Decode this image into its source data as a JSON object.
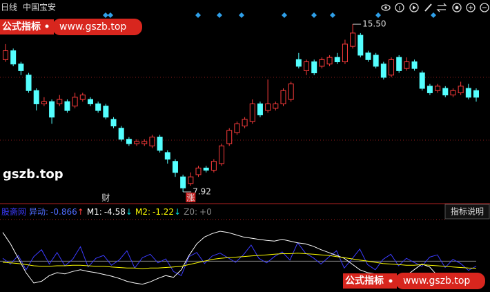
{
  "header": {
    "period": "日线",
    "stock": "中国宝安"
  },
  "watermark": {
    "badge": "公式指标",
    "url": "www.gszb.top",
    "site": "gszb.top"
  },
  "button": "指标说明",
  "chart_data": [
    {
      "type": "candlestick",
      "ylim": [
        7.39,
        15.97
      ],
      "up_color": "#ff3c3c",
      "down_color": "#54ffff",
      "open": [
        13.9,
        14.3,
        13.7,
        13.2,
        12.5,
        11.9,
        12.0,
        11.9,
        12.0,
        11.8,
        12.1,
        12.1,
        11.9,
        11.8,
        11.2,
        10.8,
        10.3,
        10.1,
        10.1,
        10.0,
        10.4,
        9.7,
        9.3,
        8.6,
        8.3,
        8.7,
        9.0,
        8.9,
        9.2,
        10.1,
        10.6,
        10.9,
        11.1,
        11.9,
        11.6,
        11.7,
        11.9,
        12.1,
        13.9,
        13.4,
        13.8,
        13.6,
        13.7,
        14.0,
        13.8,
        14.5,
        15.0,
        14.2,
        14.1,
        13.7,
        13.2,
        14.0,
        13.5,
        13.8,
        13.3,
        12.7,
        12.5,
        12.6,
        12.3,
        12.4,
        12.6,
        12.5
      ],
      "high": [
        14.6,
        14.4,
        13.8,
        13.3,
        12.6,
        12.2,
        12.1,
        12.3,
        12.1,
        12.4,
        12.4,
        12.2,
        12.0,
        11.9,
        11.3,
        10.9,
        10.4,
        10.3,
        10.3,
        10.5,
        10.5,
        9.8,
        9.4,
        8.7,
        8.8,
        9.1,
        9.1,
        9.4,
        10.1,
        10.8,
        11.1,
        11.3,
        12.1,
        12.0,
        13.0,
        12.0,
        12.6,
        12.9,
        14.2,
        13.9,
        13.9,
        14.0,
        14.1,
        14.2,
        14.8,
        15.5,
        15.1,
        14.3,
        14.2,
        13.8,
        14.0,
        14.1,
        14.0,
        13.9,
        13.4,
        12.8,
        12.8,
        12.7,
        12.6,
        12.9,
        12.8,
        12.6
      ],
      "low": [
        13.8,
        13.6,
        13.2,
        12.4,
        11.6,
        11.8,
        11.0,
        11.8,
        11.5,
        11.7,
        12.0,
        11.8,
        11.5,
        11.2,
        10.8,
        10.2,
        10.0,
        10.0,
        10.0,
        9.9,
        9.7,
        9.2,
        8.6,
        7.92,
        8.2,
        8.6,
        8.8,
        8.8,
        9.1,
        10.0,
        10.5,
        10.8,
        11.0,
        11.3,
        11.5,
        11.6,
        11.8,
        12.0,
        13.5,
        13.2,
        13.2,
        13.5,
        13.6,
        13.7,
        13.7,
        14.4,
        14.0,
        13.8,
        13.5,
        13.0,
        13.1,
        13.3,
        13.4,
        13.4,
        12.5,
        12.3,
        12.4,
        12.2,
        12.2,
        12.3,
        12.1,
        12.0
      ],
      "close": [
        14.3,
        13.7,
        13.4,
        12.5,
        11.9,
        12.0,
        11.3,
        12.1,
        11.6,
        12.2,
        12.3,
        11.9,
        11.6,
        11.3,
        10.9,
        10.3,
        10.1,
        10.2,
        10.2,
        10.4,
        9.8,
        9.4,
        8.8,
        8.1,
        8.6,
        9.0,
        8.9,
        9.3,
        10.0,
        10.7,
        11.0,
        11.2,
        11.9,
        11.4,
        11.9,
        11.9,
        12.5,
        12.8,
        13.6,
        13.8,
        13.3,
        13.9,
        14.0,
        13.8,
        14.6,
        15.1,
        14.1,
        13.9,
        13.6,
        13.1,
        13.9,
        13.4,
        13.8,
        13.5,
        12.6,
        12.4,
        12.7,
        12.3,
        12.5,
        12.7,
        12.2,
        12.2
      ],
      "high_label": {
        "value": 15.5,
        "label": "15.50"
      },
      "events": [
        {
          "index": 13,
          "label": "财",
          "boxed": false
        },
        {
          "index": 24,
          "label": "涨",
          "boxed": true
        }
      ]
    },
    {
      "type": "line",
      "indicator": "股斋网",
      "ylim": [
        -5,
        7
      ],
      "series": [
        {
          "name": "异动:",
          "color": "#3b3bff",
          "arrow": "↑",
          "arrow_color": "#ff3b3b",
          "values": [
            0.5,
            -0.5,
            1,
            -1.5,
            0.8,
            2,
            -0.5,
            1.5,
            -0.8,
            0.3,
            2.5,
            -1,
            0.5,
            1,
            -0.7,
            0.2,
            1.8,
            -1.2,
            0.6,
            1.2,
            -0.3,
            0.4,
            -1.8,
            -2.5,
            0.8,
            1.5,
            -0.4,
            0.9,
            1.4,
            0.6,
            -0.2,
            1.1,
            2.8,
            0.5,
            -0.3,
            0.8,
            1.6,
            0.2,
            3.2,
            1.4,
            0.6,
            -0.5,
            0.7,
            1.8,
            -1.2,
            0.4,
            2.1,
            -0.6,
            -1.5,
            0.3,
            1.2,
            -0.8,
            0.5,
            -0.2,
            -0.9,
            0.7,
            1.1,
            -1.1,
            0.3,
            -0.4,
            -1.6,
            -0.866
          ]
        },
        {
          "name": "M1:",
          "color": "#ffffff",
          "arrow": "↓",
          "arrow_color": "#00d8d8",
          "values": [
            5.0,
            3.0,
            0.5,
            -2.0,
            -3.8,
            -3.5,
            -2.5,
            -2.0,
            -2.2,
            -1.8,
            -1.5,
            -1.8,
            -2.0,
            -2.3,
            -2.6,
            -3.0,
            -3.5,
            -3.8,
            -4.0,
            -3.6,
            -3.0,
            -2.5,
            -2.8,
            -1.5,
            1.0,
            3.0,
            4.2,
            4.8,
            5.2,
            5.0,
            4.6,
            4.2,
            4.0,
            3.8,
            3.6,
            3.5,
            3.8,
            3.5,
            3.2,
            3.0,
            2.6,
            2.0,
            1.5,
            1.0,
            0.5,
            -0.5,
            -1.5,
            -2.0,
            -2.2,
            -2.5,
            -2.4,
            -2.6,
            -2.5,
            -1.5,
            -0.5,
            -1.0,
            -2.5,
            -3.5,
            -4.0,
            -4.3,
            -4.4,
            -4.58
          ]
        },
        {
          "name": "M2:",
          "color": "#ffff00",
          "arrow": "↓",
          "arrow_color": "#00d8d8",
          "values": [
            -0.2,
            -0.3,
            -0.4,
            -0.6,
            -0.8,
            -0.9,
            -0.9,
            -0.8,
            -0.8,
            -0.7,
            -0.7,
            -0.8,
            -0.9,
            -0.9,
            -1.0,
            -1.1,
            -1.2,
            -1.2,
            -1.3,
            -1.2,
            -1.2,
            -1.1,
            -1.0,
            -0.9,
            -0.6,
            -0.3,
            0.0,
            0.3,
            0.5,
            0.6,
            0.7,
            0.8,
            0.9,
            1.0,
            1.1,
            1.2,
            1.3,
            1.3,
            1.4,
            1.3,
            1.2,
            1.1,
            1.0,
            0.8,
            0.6,
            0.4,
            0.2,
            0.0,
            -0.2,
            -0.4,
            -0.5,
            -0.6,
            -0.7,
            -0.7,
            -0.6,
            -0.7,
            -0.8,
            -0.9,
            -1.0,
            -1.1,
            -1.2,
            -1.22
          ]
        }
      ],
      "reference": {
        "name": "Z0:",
        "value": 0,
        "value_label": "+0",
        "color": "#8a8a8a"
      }
    }
  ]
}
